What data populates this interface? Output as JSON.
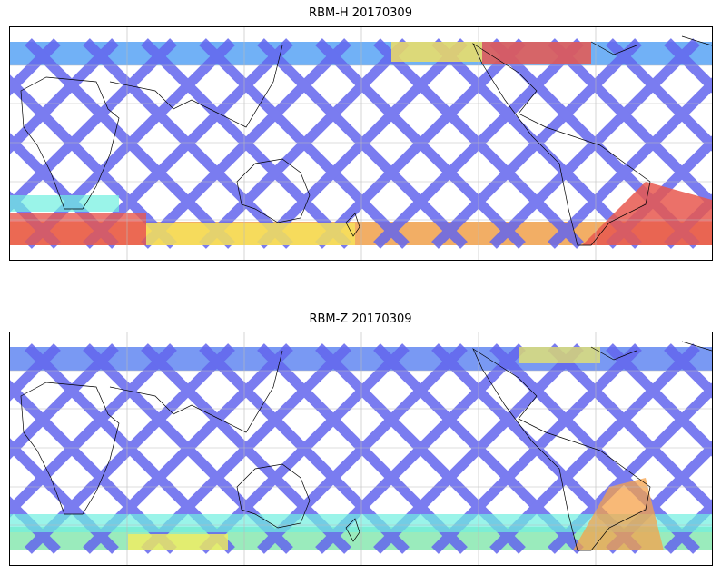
{
  "panels": [
    {
      "title": "RBM-H 20170309",
      "colors": {
        "north_band": "#62a8f5",
        "track": "#6366ee",
        "south_band": "#f0a04a",
        "hot": "#e8584f",
        "warm": "#f7e35a",
        "cyan": "#6ff0e0"
      }
    },
    {
      "title": "RBM-Z 20170309",
      "colors": {
        "north_band": "#6a8ef2",
        "track": "#6366ee",
        "south_band": "#88e8b0",
        "hot": "#f6a24a",
        "warm": "#f4ee5c",
        "cyan": "#6ff0e0"
      }
    }
  ],
  "map": {
    "projection": "equirectangular",
    "central_longitude": 180,
    "lat_range": [
      -65,
      75
    ],
    "coastline_color": "#000000",
    "gridline_color": "#bbbbbb"
  }
}
